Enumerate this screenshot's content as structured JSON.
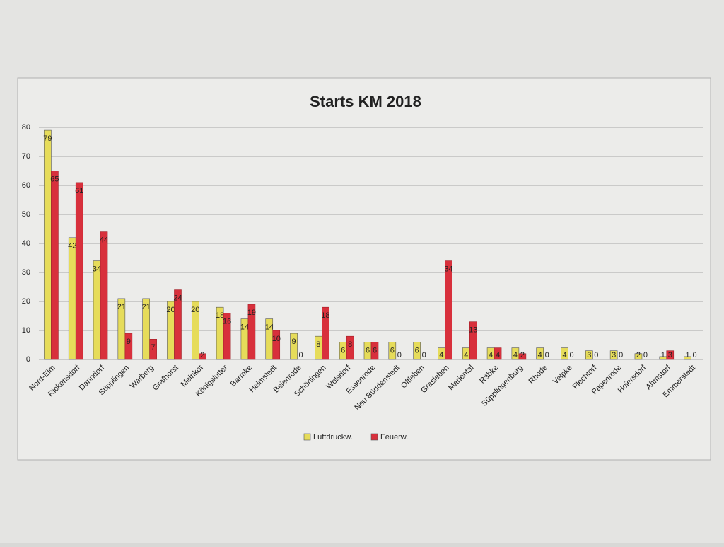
{
  "chart_data": {
    "type": "bar",
    "title": "Starts KM 2018",
    "categories": [
      "Nord-Elm",
      "Rickensdorf",
      "Danndorf",
      "Süpplingen",
      "Warberg",
      "Grafhorst",
      "Meinkot",
      "Königslutter",
      "Barmke",
      "Helmstedt",
      "Beienrode",
      "Schöningen",
      "Wolsdorf",
      "Essenrode",
      "Neu Büddenstedt",
      "Offleben",
      "Grasleben",
      "Mariental",
      "Räbke",
      "Süpplingenburg",
      "Rhode",
      "Velpke",
      "Flechtorf",
      "Papenrode",
      "Hoiersdorf",
      "Ahmstorf",
      "Emmerstedt"
    ],
    "series": [
      {
        "name": "Luftdruckw.",
        "color": "#e6dc5a",
        "values": [
          79,
          42,
          34,
          21,
          21,
          20,
          20,
          18,
          14,
          14,
          9,
          8,
          6,
          6,
          6,
          6,
          4,
          4,
          4,
          4,
          4,
          4,
          3,
          3,
          2,
          1,
          1
        ]
      },
      {
        "name": "Feuerw.",
        "color": "#d8303c",
        "values": [
          65,
          61,
          44,
          9,
          7,
          24,
          2,
          16,
          19,
          10,
          0,
          18,
          8,
          6,
          0,
          0,
          34,
          13,
          4,
          2,
          0,
          0,
          0,
          0,
          0,
          3,
          0
        ]
      }
    ],
    "ylim": [
      0,
      80
    ],
    "yticks": [
      0,
      10,
      20,
      30,
      40,
      50,
      60,
      70,
      80
    ],
    "grid": true,
    "legend": "bottom"
  }
}
